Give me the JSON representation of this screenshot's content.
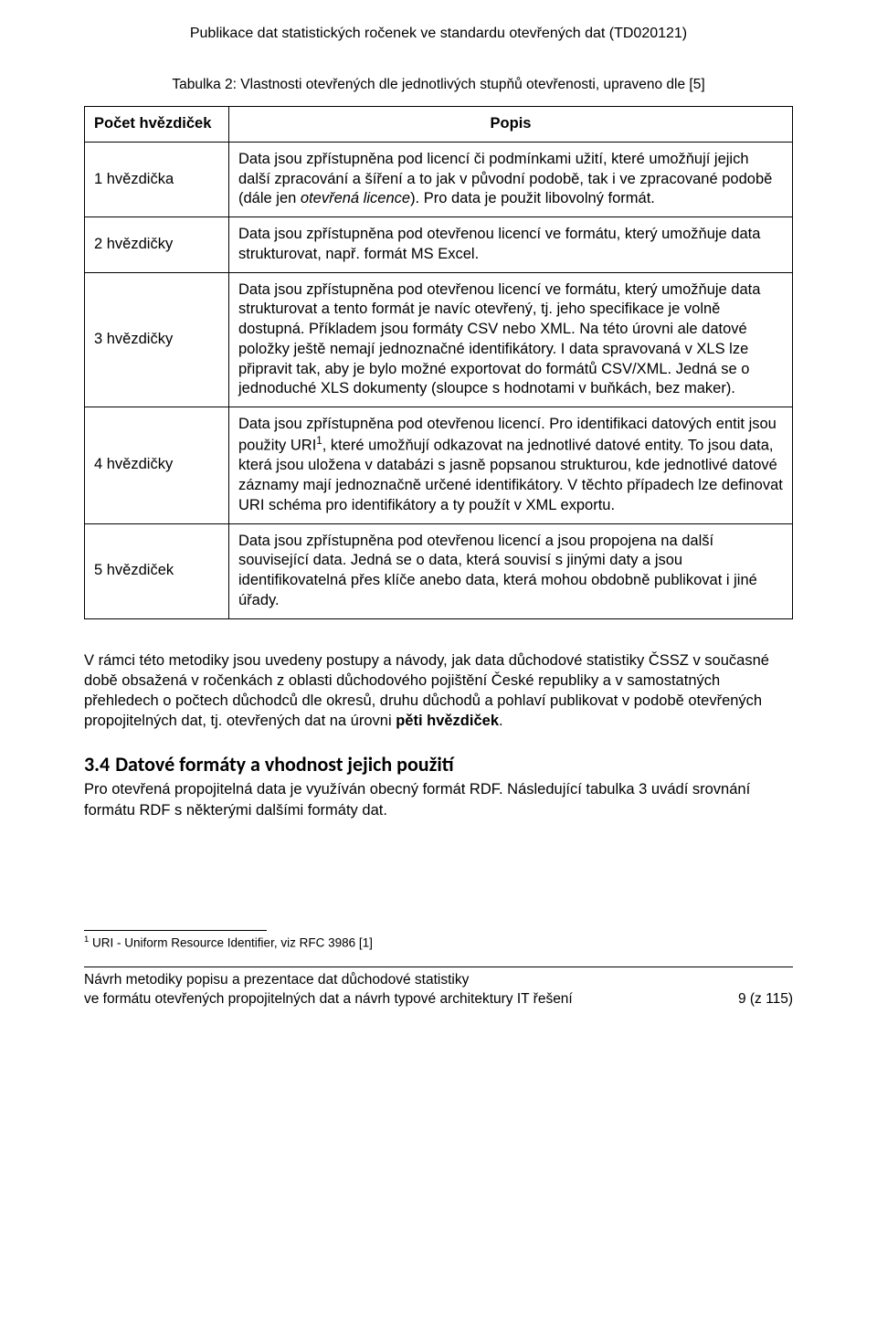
{
  "running_head": "Publikace dat statistických ročenek ve standardu otevřených dat (TD020121)",
  "table_caption": "Tabulka 2: Vlastnosti otevřených dle jednotlivých stupňů otevřenosti, upraveno dle [5]",
  "table": {
    "header_col1": "Počet hvězdiček",
    "header_col2": "Popis",
    "rows": [
      {
        "label": "1 hvězdička",
        "desc_pre": "Data jsou zpřístupněna pod licencí či podmínkami užití, které umožňují jejich další zpracování a šíření a to jak v původní podobě, tak i ve zpracované podobě (dále jen ",
        "desc_italic": "otevřená licence",
        "desc_post": "). Pro data je použit libovolný formát."
      },
      {
        "label": "2 hvězdičky",
        "desc_pre": "Data jsou zpřístupněna pod otevřenou licencí ve formátu, který umožňuje data strukturovat, např. formát MS Excel.",
        "desc_italic": "",
        "desc_post": ""
      },
      {
        "label": "3 hvězdičky",
        "desc_pre": "Data jsou zpřístupněna pod otevřenou licencí ve formátu, který umožňuje data strukturovat a tento formát je navíc otevřený, tj. jeho specifikace je volně dostupná. Příkladem jsou formáty CSV nebo XML. Na této úrovni ale datové položky ještě nemají jednoznačné identifikátory.  I data spravovaná v XLS lze připravit tak, aby je bylo možné exportovat do formátů CSV/XML. Jedná se o jednoduché XLS dokumenty (sloupce s hodnotami v buňkách, bez maker).",
        "desc_italic": "",
        "desc_post": ""
      },
      {
        "label": "4 hvězdičky",
        "desc_pre": "Data jsou zpřístupněna pod otevřenou licencí. Pro identifikaci datových entit jsou použity URI",
        "sup": "1",
        "desc_post": ", které umožňují odkazovat na jednotlivé datové entity. To jsou data, která jsou uložena v databázi s jasně popsanou strukturou, kde jednotlivé datové záznamy mají jednoznačně určené identifikátory. V těchto případech lze definovat URI schéma pro identifikátory a ty použít v XML exportu."
      },
      {
        "label": "5 hvězdiček",
        "desc_pre": "Data jsou zpřístupněna pod otevřenou licencí a jsou propojena na další související data. Jedná se o data, která souvisí s jinými daty a jsou identifikovatelná přes klíče anebo data, která mohou obdobně publikovat i jiné úřady.",
        "desc_italic": "",
        "desc_post": ""
      }
    ]
  },
  "para1_pre": "V rámci této metodiky jsou uvedeny postupy a návody, jak data důchodové statistiky ČSSZ v současné době obsažená v ročenkách z oblasti důchodového pojištění České republiky a v samostatných přehledech o počtech důchodců dle okresů, druhu důchodů a pohlaví publikovat v podobě otevřených propojitelných dat, tj. otevřených dat na úrovni ",
  "para1_bold": "pěti hvězdiček",
  "para1_post": ".",
  "section_number": "3.4",
  "section_title": "Datové formáty a vhodnost jejich použití",
  "para2": "Pro otevřená propojitelná data je využíván obecný formát RDF. Následující tabulka 3 uvádí srovnání formátu RDF s některými dalšími formáty dat.",
  "footnote_marker": "1",
  "footnote_text": " URI - Uniform Resource Identifier, viz RFC 3986 [1]",
  "footer_line1": "Návrh metodiky popisu a prezentace dat důchodové statistiky",
  "footer_line2": "ve formátu otevřených propojitelných dat a návrh typové architektury IT řešení",
  "footer_page": "9 (z 115)"
}
